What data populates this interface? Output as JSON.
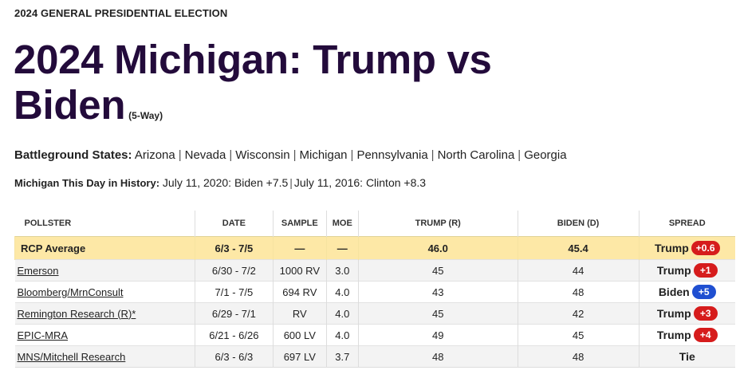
{
  "header": {
    "kicker": "2024 GENERAL PRESIDENTIAL ELECTION",
    "title": "2024 Michigan: Trump vs Biden",
    "subtitle": "(5-Way)"
  },
  "battleground": {
    "label": "Battleground States:",
    "states": [
      "Arizona",
      "Nevada",
      "Wisconsin",
      "Michigan",
      "Pennsylvania",
      "North Carolina",
      "Georgia"
    ]
  },
  "history": {
    "label": "Michigan This Day in History:",
    "items": [
      "July 11, 2020: Biden +7.5",
      "July 11, 2016: Clinton +8.3"
    ]
  },
  "table": {
    "columns": [
      "POLLSTER",
      "DATE",
      "SAMPLE",
      "MOE",
      "TRUMP (R)",
      "BIDEN (D)",
      "SPREAD"
    ],
    "average": {
      "pollster": "RCP Average",
      "date": "6/3 - 7/5",
      "sample": "—",
      "moe": "—",
      "trump": "46.0",
      "biden": "45.4",
      "spread_name": "Trump",
      "spread_value": "+0.6"
    },
    "rows": [
      {
        "pollster": "Emerson",
        "date": "6/30 - 7/2",
        "sample": "1000 RV",
        "moe": "3.0",
        "trump": "45",
        "biden": "44",
        "spread_name": "Trump",
        "spread_value": "+1"
      },
      {
        "pollster": "Bloomberg/MrnConsult",
        "date": "7/1 - 7/5",
        "sample": "694 RV",
        "moe": "4.0",
        "trump": "43",
        "biden": "48",
        "spread_name": "Biden",
        "spread_value": "+5"
      },
      {
        "pollster": "Remington Research (R)*",
        "date": "6/29 - 7/1",
        "sample": "RV",
        "moe": "4.0",
        "trump": "45",
        "biden": "42",
        "spread_name": "Trump",
        "spread_value": "+3"
      },
      {
        "pollster": "EPIC-MRA",
        "date": "6/21 - 6/26",
        "sample": "600 LV",
        "moe": "4.0",
        "trump": "49",
        "biden": "45",
        "spread_name": "Trump",
        "spread_value": "+4"
      },
      {
        "pollster": "MNS/Mitchell Research",
        "date": "6/3 - 6/3",
        "sample": "697 LV",
        "moe": "3.7",
        "trump": "48",
        "biden": "48",
        "spread_name": "Tie",
        "spread_value": ""
      }
    ]
  },
  "colors": {
    "title": "#230b3b",
    "trump_badge": "#d61c1c",
    "biden_badge": "#1f4fd1",
    "average_row": "#fde8a6"
  }
}
